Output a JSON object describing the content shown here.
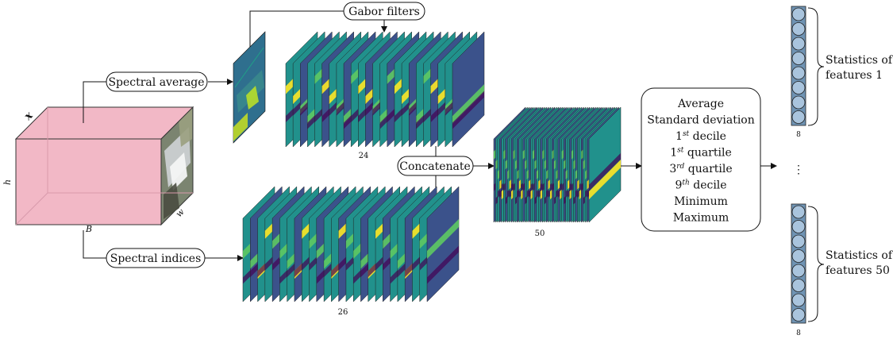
{
  "input_cube": {
    "axis_x": "x",
    "axis_h": "h",
    "axis_w": "w",
    "axis_b": "B",
    "color": "#f2b8c6"
  },
  "branches": {
    "spectral_average": "Spectral average",
    "spectral_indices": "Spectral indices",
    "gabor_filters": "Gabor filters",
    "concatenate": "Concatenate"
  },
  "stacks": {
    "gabor_count": "24",
    "indices_count": "26",
    "concat_count": "50"
  },
  "statistics_box": {
    "items": [
      {
        "base": "Average",
        "sup": "",
        "rest": ""
      },
      {
        "base": "Standard deviation",
        "sup": "",
        "rest": ""
      },
      {
        "base": "1",
        "sup": "st",
        "rest": " decile"
      },
      {
        "base": "1",
        "sup": "st",
        "rest": " quartile"
      },
      {
        "base": "3",
        "sup": "rd",
        "rest": " quartile"
      },
      {
        "base": "9",
        "sup": "th",
        "rest": " decile"
      },
      {
        "base": "Minimum",
        "sup": "",
        "rest": ""
      },
      {
        "base": "Maximum",
        "sup": "",
        "rest": ""
      }
    ]
  },
  "feature_vectors": {
    "top_label_line1": "Statistics of",
    "top_label_line2": "features 1",
    "bottom_label_line1": "Statistics of",
    "bottom_label_line2": "features 50",
    "top_size": "8",
    "bottom_size": "8",
    "ellipsis": "⋮",
    "node_count": 8,
    "node_color": "#a9c4dd",
    "bar_color": "#6f93b3"
  },
  "palette": [
    "#440154",
    "#3b528b",
    "#21918c",
    "#5ec962",
    "#fde725"
  ]
}
